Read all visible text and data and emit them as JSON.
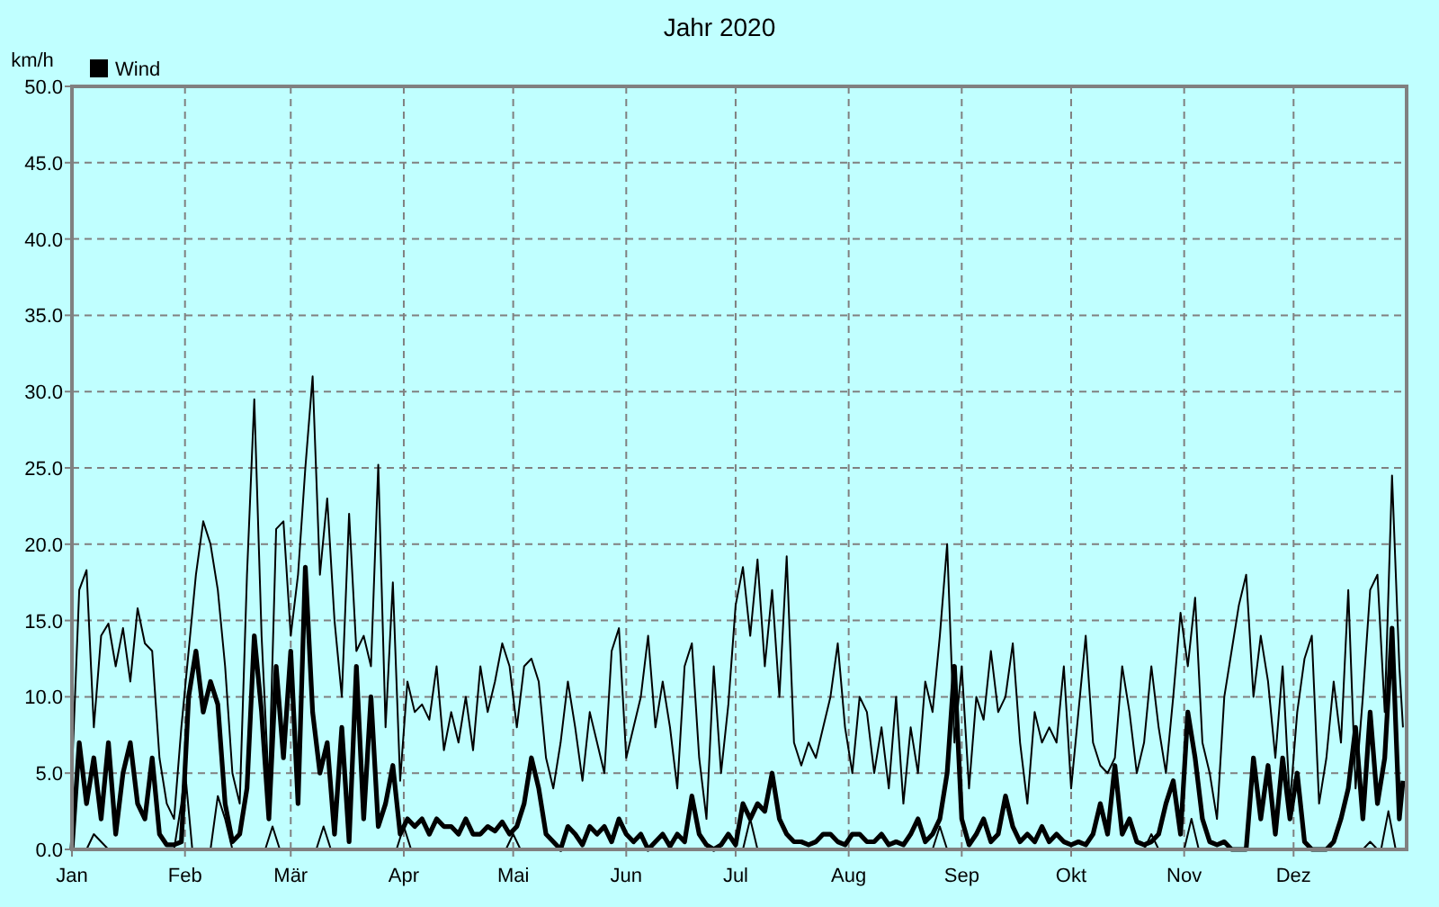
{
  "chart_data": {
    "type": "line",
    "title": "Jahr 2020",
    "ylabel": "km/h",
    "legend": "top left",
    "grid": true,
    "line_style": "solid",
    "xlim": [
      "2020-01-01",
      "2021-01-01"
    ],
    "xticks": [
      {
        "value": "2020-01-01",
        "label": "Jan"
      },
      {
        "value": "2020-02-01",
        "label": "Feb"
      },
      {
        "value": "2020-03-01",
        "label": "Mär"
      },
      {
        "value": "2020-04-01",
        "label": "Apr"
      },
      {
        "value": "2020-05-01",
        "label": "Mai"
      },
      {
        "value": "2020-06-01",
        "label": "Jun"
      },
      {
        "value": "2020-07-01",
        "label": "Jul"
      },
      {
        "value": "2020-08-01",
        "label": "Aug"
      },
      {
        "value": "2020-09-01",
        "label": "Sep"
      },
      {
        "value": "2020-10-01",
        "label": "Okt"
      },
      {
        "value": "2020-11-01",
        "label": "Nov"
      },
      {
        "value": "2020-12-01",
        "label": "Dez"
      }
    ],
    "ylim": [
      0,
      50
    ],
    "yticks": [
      {
        "value": 0,
        "label": "0.0"
      },
      {
        "value": 5,
        "label": "5.0"
      },
      {
        "value": 10,
        "label": "10.0"
      },
      {
        "value": 15,
        "label": "15.0"
      },
      {
        "value": 20,
        "label": "20.0"
      },
      {
        "value": 25,
        "label": "25.0"
      },
      {
        "value": 30,
        "label": "30.0"
      },
      {
        "value": 35,
        "label": "35.0"
      },
      {
        "value": 40,
        "label": "40.0"
      },
      {
        "value": 45,
        "label": "45.0"
      },
      {
        "value": 50,
        "label": "50.0"
      }
    ],
    "x": [
      "2020-01-01",
      "2020-01-03",
      "2020-01-05",
      "2020-01-07",
      "2020-01-09",
      "2020-01-11",
      "2020-01-13",
      "2020-01-15",
      "2020-01-17",
      "2020-01-19",
      "2020-01-21",
      "2020-01-23",
      "2020-01-25",
      "2020-01-27",
      "2020-01-29",
      "2020-01-31",
      "2020-02-02",
      "2020-02-04",
      "2020-02-06",
      "2020-02-08",
      "2020-02-10",
      "2020-02-12",
      "2020-02-14",
      "2020-02-16",
      "2020-02-18",
      "2020-02-20",
      "2020-02-22",
      "2020-02-24",
      "2020-02-26",
      "2020-02-28",
      "2020-03-01",
      "2020-03-03",
      "2020-03-05",
      "2020-03-07",
      "2020-03-09",
      "2020-03-11",
      "2020-03-13",
      "2020-03-15",
      "2020-03-17",
      "2020-03-19",
      "2020-03-21",
      "2020-03-23",
      "2020-03-25",
      "2020-03-27",
      "2020-03-29",
      "2020-03-31",
      "2020-04-02",
      "2020-04-04",
      "2020-04-06",
      "2020-04-08",
      "2020-04-10",
      "2020-04-12",
      "2020-04-14",
      "2020-04-16",
      "2020-04-18",
      "2020-04-20",
      "2020-04-22",
      "2020-04-24",
      "2020-04-26",
      "2020-04-28",
      "2020-04-30",
      "2020-05-02",
      "2020-05-04",
      "2020-05-06",
      "2020-05-08",
      "2020-05-10",
      "2020-05-12",
      "2020-05-14",
      "2020-05-16",
      "2020-05-18",
      "2020-05-20",
      "2020-05-22",
      "2020-05-24",
      "2020-05-26",
      "2020-05-28",
      "2020-05-30",
      "2020-06-01",
      "2020-06-03",
      "2020-06-05",
      "2020-06-07",
      "2020-06-09",
      "2020-06-11",
      "2020-06-13",
      "2020-06-15",
      "2020-06-17",
      "2020-06-19",
      "2020-06-21",
      "2020-06-23",
      "2020-06-25",
      "2020-06-27",
      "2020-06-29",
      "2020-07-01",
      "2020-07-03",
      "2020-07-05",
      "2020-07-07",
      "2020-07-09",
      "2020-07-11",
      "2020-07-13",
      "2020-07-15",
      "2020-07-17",
      "2020-07-19",
      "2020-07-21",
      "2020-07-23",
      "2020-07-25",
      "2020-07-27",
      "2020-07-29",
      "2020-07-31",
      "2020-08-02",
      "2020-08-04",
      "2020-08-06",
      "2020-08-08",
      "2020-08-10",
      "2020-08-12",
      "2020-08-14",
      "2020-08-16",
      "2020-08-18",
      "2020-08-20",
      "2020-08-22",
      "2020-08-24",
      "2020-08-26",
      "2020-08-28",
      "2020-08-30",
      "2020-09-01",
      "2020-09-03",
      "2020-09-05",
      "2020-09-07",
      "2020-09-09",
      "2020-09-11",
      "2020-09-13",
      "2020-09-15",
      "2020-09-17",
      "2020-09-19",
      "2020-09-21",
      "2020-09-23",
      "2020-09-25",
      "2020-09-27",
      "2020-09-29",
      "2020-10-01",
      "2020-10-03",
      "2020-10-05",
      "2020-10-07",
      "2020-10-09",
      "2020-10-11",
      "2020-10-13",
      "2020-10-15",
      "2020-10-17",
      "2020-10-19",
      "2020-10-21",
      "2020-10-23",
      "2020-10-25",
      "2020-10-27",
      "2020-10-29",
      "2020-10-31",
      "2020-11-02",
      "2020-11-04",
      "2020-11-06",
      "2020-11-08",
      "2020-11-10",
      "2020-11-12",
      "2020-11-14",
      "2020-11-16",
      "2020-11-18",
      "2020-11-20",
      "2020-11-22",
      "2020-11-24",
      "2020-11-26",
      "2020-11-28",
      "2020-11-30",
      "2020-12-02",
      "2020-12-04",
      "2020-12-06",
      "2020-12-08",
      "2020-12-10",
      "2020-12-12",
      "2020-12-14",
      "2020-12-16",
      "2020-12-18",
      "2020-12-20",
      "2020-12-22",
      "2020-12-24",
      "2020-12-26",
      "2020-12-28",
      "2020-12-30",
      "2020-12-31"
    ],
    "series": [
      {
        "color": "#000000",
        "values": [
          5,
          17,
          18.3,
          8,
          14,
          14.8,
          12,
          14.5,
          11,
          15.8,
          13.5,
          13,
          6,
          3,
          2,
          8,
          13,
          18,
          21.5,
          20,
          17,
          12,
          5,
          3,
          18,
          29.5,
          14,
          4,
          21,
          21.5,
          14,
          18,
          25,
          31,
          18,
          23,
          15,
          10,
          22,
          13,
          14,
          12,
          25.2,
          8,
          17.5,
          4.5,
          11,
          9,
          9.5,
          8.5,
          12,
          6.5,
          9,
          7,
          10,
          6.5,
          12,
          9,
          11,
          13.5,
          12,
          8,
          12,
          12.5,
          11,
          6,
          4,
          7,
          11,
          8,
          4.5,
          9,
          7,
          5,
          13,
          14.5,
          6,
          8,
          10,
          14,
          8,
          11,
          8,
          4,
          12,
          13.5,
          6,
          2,
          12,
          5,
          9.5,
          16,
          18.5,
          14,
          19,
          12,
          17,
          10,
          19.2,
          7,
          5.5,
          7,
          6,
          8,
          10,
          13.5,
          8,
          5,
          10,
          9,
          5,
          8,
          4,
          10,
          3,
          8,
          5,
          11,
          9,
          14,
          20,
          7,
          12,
          4,
          10,
          8.5,
          13,
          9,
          10,
          13.5,
          7,
          3,
          9,
          7,
          8,
          7,
          12,
          4,
          9,
          14,
          7,
          5.5,
          5,
          6,
          12,
          9,
          5,
          7,
          12,
          8,
          5,
          10,
          15.5,
          12,
          16.5,
          7,
          5,
          2,
          10,
          13,
          16,
          18,
          10,
          14,
          11,
          6,
          12,
          3,
          9,
          12.5,
          14,
          3,
          6,
          11,
          7,
          17,
          4,
          10,
          17,
          18,
          9,
          24.5,
          12,
          8
        ]
      },
      {
        "name": "Wind",
        "color": "#000000",
        "values": [
          0,
          7,
          3,
          6,
          2,
          7,
          1,
          5,
          7,
          3,
          2,
          6,
          1,
          0.3,
          0.3,
          0.5,
          10,
          13,
          9,
          11,
          9.5,
          3,
          0.5,
          1,
          4,
          14,
          9,
          2,
          12,
          6,
          13,
          3,
          18.5,
          9,
          5,
          7,
          1,
          8,
          0.5,
          12,
          2,
          10,
          1.5,
          3,
          5.5,
          1,
          2,
          1.5,
          2,
          1,
          2,
          1.5,
          1.5,
          1,
          2,
          1,
          1,
          1.5,
          1.2,
          1.8,
          1,
          1.5,
          3,
          6,
          4,
          1,
          0.5,
          0,
          1.5,
          1,
          0.3,
          1.5,
          1,
          1.5,
          0.5,
          2,
          1,
          0.5,
          1,
          0,
          0.5,
          1,
          0.2,
          1,
          0.5,
          3.5,
          1,
          0.3,
          0,
          0.3,
          1,
          0.3,
          3,
          2,
          3,
          2.5,
          5,
          2,
          1,
          0.5,
          0.5,
          0.3,
          0.5,
          1,
          1,
          0.5,
          0.3,
          1,
          1,
          0.5,
          0.5,
          1,
          0.3,
          0.5,
          0.3,
          1,
          2,
          0.5,
          1,
          2,
          5,
          12,
          2,
          0.3,
          1,
          2,
          0.5,
          1,
          3.5,
          1.5,
          0.5,
          1,
          0.5,
          1.5,
          0.5,
          1,
          0.5,
          0.3,
          0.5,
          0.3,
          1,
          3,
          1,
          5.5,
          1,
          2,
          0.5,
          0.3,
          0.5,
          1,
          3,
          4.5,
          1,
          9,
          6,
          2,
          0.5,
          0.3,
          0.5,
          0,
          0,
          0,
          6,
          2,
          5.5,
          1,
          6,
          2,
          5,
          0.5,
          0,
          0,
          0,
          0.5,
          2,
          4,
          8,
          2,
          9,
          3,
          6,
          14.5,
          2,
          4.5
        ]
      },
      {
        "color": "#000000",
        "x": [
          "2020-01-01",
          "2020-01-05",
          "2020-01-07",
          "2020-01-09",
          "2020-01-11",
          "2020-01-29",
          "2020-01-31",
          "2020-02-01",
          "2020-02-03",
          "2020-02-08",
          "2020-02-10",
          "2020-02-12",
          "2020-02-14",
          "2020-02-23",
          "2020-02-25",
          "2020-02-27",
          "2020-03-08",
          "2020-03-10",
          "2020-03-12",
          "2020-03-30",
          "2020-04-01",
          "2020-04-03",
          "2020-04-29",
          "2020-05-01",
          "2020-05-03",
          "2020-07-03",
          "2020-07-05",
          "2020-07-07",
          "2020-08-24",
          "2020-08-26",
          "2020-08-28",
          "2020-10-21",
          "2020-10-23",
          "2020-10-25",
          "2020-11-01",
          "2020-11-03",
          "2020-11-05",
          "2020-12-20",
          "2020-12-22",
          "2020-12-24",
          "2020-12-25",
          "2020-12-27",
          "2020-12-29",
          "2020-12-31"
        ],
        "values": [
          0,
          0,
          1,
          0.5,
          0,
          0,
          3,
          5.2,
          0,
          0,
          3.5,
          2,
          0,
          0,
          1.5,
          0,
          0,
          1.5,
          0,
          0,
          1.5,
          0,
          0,
          1,
          0,
          0,
          2,
          0,
          0,
          1.5,
          0,
          0,
          1,
          0,
          0,
          2,
          0,
          0,
          0.5,
          0,
          0,
          2.5,
          0,
          0
        ]
      }
    ]
  }
}
